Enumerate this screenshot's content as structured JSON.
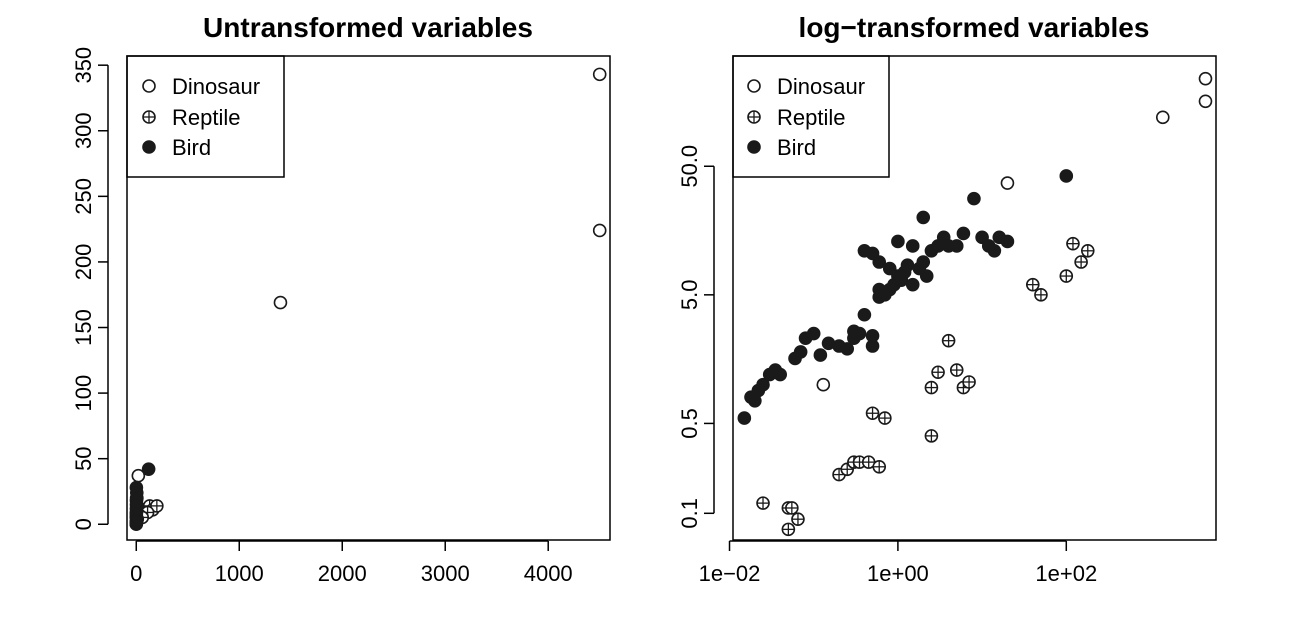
{
  "chart_data": [
    {
      "type": "scatter",
      "title": "Untransformed variables",
      "xlabel": "",
      "ylabel": "",
      "xscale": "linear",
      "yscale": "linear",
      "xlim": [
        -90,
        4600
      ],
      "ylim": [
        -12,
        357
      ],
      "x_ticks": [
        0,
        1000,
        2000,
        3000,
        4000
      ],
      "x_tick_labels": [
        "0",
        "1000",
        "2000",
        "3000",
        "4000"
      ],
      "y_ticks": [
        0,
        50,
        100,
        150,
        200,
        250,
        300,
        350
      ],
      "y_tick_labels": [
        "0",
        "50",
        "100",
        "150",
        "200",
        "250",
        "300",
        "350"
      ],
      "legend": {
        "position": "top-left",
        "entries": [
          {
            "label": "Dinosaur",
            "marker": "open-circle"
          },
          {
            "label": "Reptile",
            "marker": "circle-plus"
          },
          {
            "label": "Bird",
            "marker": "filled-circle"
          }
        ]
      },
      "series": [
        {
          "name": "Dinosaur",
          "marker": "open-circle",
          "points": [
            [
              4500,
              343
            ],
            [
              4500,
              224
            ],
            [
              1400,
              169
            ],
            [
              20,
              37
            ],
            [
              0.13,
              1.0
            ]
          ]
        },
        {
          "name": "Reptile",
          "marker": "circle-plus",
          "points": [
            [
              130,
              14
            ],
            [
              160,
              11
            ],
            [
              200,
              14
            ],
            [
              110,
              9
            ],
            [
              35,
              6.5
            ],
            [
              58,
              5.2
            ],
            [
              5,
              3
            ],
            [
              3.5,
              2
            ],
            [
              10,
              4
            ],
            [
              0.3,
              1
            ],
            [
              0.05,
              0.1
            ],
            [
              0.1,
              0.12
            ]
          ]
        },
        {
          "name": "Bird",
          "marker": "filled-circle",
          "points": [
            [
              120,
              42
            ],
            [
              1,
              28
            ],
            [
              3,
              20
            ],
            [
              5,
              24
            ],
            [
              10,
              14
            ],
            [
              6,
              20
            ],
            [
              2,
              15
            ],
            [
              1.5,
              12
            ],
            [
              1,
              8
            ],
            [
              0.5,
              6
            ],
            [
              0.3,
              5
            ],
            [
              0.8,
              9
            ],
            [
              2,
              18
            ],
            [
              0.4,
              2
            ],
            [
              0.05,
              1.5
            ],
            [
              0.02,
              0.5
            ],
            [
              0.01,
              0.8
            ],
            [
              0.1,
              1.2
            ]
          ]
        }
      ]
    },
    {
      "type": "scatter",
      "title": "log−transformed variables",
      "xlabel": "",
      "ylabel": "",
      "xscale": "log",
      "yscale": "log",
      "xlim": [
        0.011,
        6000
      ],
      "ylim": [
        0.062,
        360
      ],
      "x_ticks": [
        0.01,
        1,
        100
      ],
      "x_tick_labels": [
        "1e−02",
        "1e+00",
        "1e+02"
      ],
      "y_ticks": [
        0.1,
        0.5,
        5,
        50
      ],
      "y_tick_labels": [
        "0.1",
        "0.5",
        "5.0",
        "50.0"
      ],
      "legend": {
        "position": "top-left",
        "entries": [
          {
            "label": "Dinosaur",
            "marker": "open-circle"
          },
          {
            "label": "Reptile",
            "marker": "circle-plus"
          },
          {
            "label": "Bird",
            "marker": "filled-circle"
          }
        ]
      },
      "series": [
        {
          "name": "Dinosaur",
          "marker": "open-circle",
          "points": [
            [
              4500,
              240
            ],
            [
              4500,
              160
            ],
            [
              1400,
              120
            ],
            [
              20,
              37
            ],
            [
              0.13,
              1.0
            ]
          ]
        },
        {
          "name": "Reptile",
          "marker": "circle-plus",
          "points": [
            [
              0.025,
              0.12
            ],
            [
              0.05,
              0.11
            ],
            [
              0.055,
              0.11
            ],
            [
              0.065,
              0.09
            ],
            [
              0.05,
              0.075
            ],
            [
              0.2,
              0.2
            ],
            [
              0.25,
              0.22
            ],
            [
              0.3,
              0.25
            ],
            [
              0.35,
              0.25
            ],
            [
              0.45,
              0.25
            ],
            [
              0.6,
              0.23
            ],
            [
              0.5,
              0.6
            ],
            [
              0.7,
              0.55
            ],
            [
              2.5,
              0.4
            ],
            [
              2.5,
              0.95
            ],
            [
              3,
              1.25
            ],
            [
              4,
              2.2
            ],
            [
              5,
              1.3
            ],
            [
              6,
              0.95
            ],
            [
              7,
              1.05
            ],
            [
              40,
              6
            ],
            [
              50,
              5
            ],
            [
              100,
              7
            ],
            [
              120,
              12.5
            ],
            [
              150,
              9
            ],
            [
              180,
              11
            ]
          ]
        },
        {
          "name": "Bird",
          "marker": "filled-circle",
          "points": [
            [
              0.015,
              0.55
            ],
            [
              0.018,
              0.8
            ],
            [
              0.02,
              0.75
            ],
            [
              0.022,
              0.9
            ],
            [
              0.025,
              1
            ],
            [
              0.03,
              1.2
            ],
            [
              0.035,
              1.3
            ],
            [
              0.04,
              1.2
            ],
            [
              0.06,
              1.6
            ],
            [
              0.07,
              1.8
            ],
            [
              0.08,
              2.3
            ],
            [
              0.1,
              2.5
            ],
            [
              0.12,
              1.7
            ],
            [
              0.15,
              2.1
            ],
            [
              0.2,
              2
            ],
            [
              0.25,
              1.9
            ],
            [
              0.3,
              2.3
            ],
            [
              0.35,
              2.5
            ],
            [
              0.4,
              3.5
            ],
            [
              0.3,
              2.6
            ],
            [
              0.5,
              2
            ],
            [
              0.5,
              2.4
            ],
            [
              0.6,
              4.8
            ],
            [
              0.6,
              5.5
            ],
            [
              0.7,
              5
            ],
            [
              0.8,
              5.5
            ],
            [
              0.9,
              6
            ],
            [
              1,
              7
            ],
            [
              1.1,
              6.5
            ],
            [
              1.2,
              7.5
            ],
            [
              1.3,
              8.5
            ],
            [
              1.5,
              6
            ],
            [
              1.8,
              8
            ],
            [
              2,
              9
            ],
            [
              2.2,
              7
            ],
            [
              2.5,
              11
            ],
            [
              3,
              12
            ],
            [
              3.5,
              14
            ],
            [
              4,
              12
            ],
            [
              5,
              12
            ],
            [
              6,
              15
            ],
            [
              8,
              28
            ],
            [
              10,
              14
            ],
            [
              12,
              12
            ],
            [
              14,
              11
            ],
            [
              16,
              14
            ],
            [
              20,
              13
            ],
            [
              0.4,
              11
            ],
            [
              0.5,
              10.5
            ],
            [
              0.6,
              9
            ],
            [
              0.8,
              8
            ],
            [
              1,
              13
            ],
            [
              1.5,
              12
            ],
            [
              2,
              20
            ],
            [
              100,
              42
            ]
          ]
        }
      ]
    }
  ]
}
